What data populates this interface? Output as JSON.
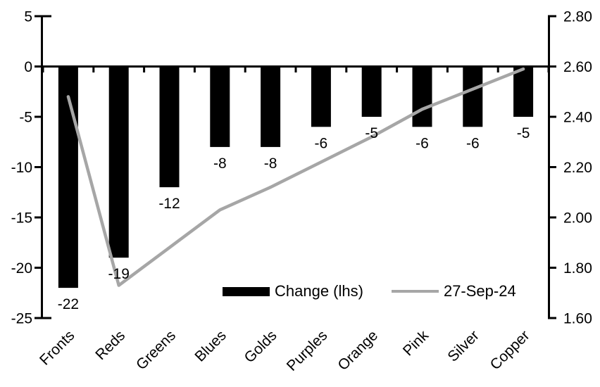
{
  "chart_data": {
    "type": "combo",
    "title": "",
    "categories": [
      "Fronts",
      "Reds",
      "Greens",
      "Blues",
      "Golds",
      "Purples",
      "Orange",
      "Pink",
      "Silver",
      "Copper"
    ],
    "series": [
      {
        "name": "Change (lhs)",
        "type": "bar",
        "axis": "left",
        "color": "#000000",
        "values": [
          -22,
          -19,
          -12,
          -8,
          -8,
          -6,
          -5,
          -6,
          -6,
          -5
        ],
        "data_labels": [
          "-22",
          "-19",
          "-12",
          "-8",
          "-8",
          "-6",
          "-5",
          "-6",
          "-6",
          "-5"
        ]
      },
      {
        "name": "27-Sep-24",
        "type": "line",
        "axis": "right",
        "color": "#a6a6a6",
        "values": [
          2.48,
          1.73,
          1.88,
          2.03,
          2.12,
          2.22,
          2.32,
          2.43,
          2.51,
          2.59
        ]
      }
    ],
    "left_axis": {
      "min": -25,
      "max": 5,
      "tick_values": [
        5,
        0,
        -5,
        -10,
        -15,
        -20,
        -25
      ],
      "tick_labels": [
        "5",
        "0",
        "-5",
        "-10",
        "-15",
        "-20",
        "-25"
      ]
    },
    "right_axis": {
      "min": 1.6,
      "max": 2.8,
      "tick_values": [
        2.8,
        2.6,
        2.4,
        2.2,
        2.0,
        1.8,
        1.6
      ],
      "tick_labels": [
        "2.80",
        "2.60",
        "2.40",
        "2.20",
        "2.00",
        "1.80",
        "1.60"
      ]
    },
    "legend": {
      "position": "bottom-center"
    },
    "grid": false,
    "axis_color": "#000000",
    "xlabel": "",
    "ylabel": ""
  }
}
